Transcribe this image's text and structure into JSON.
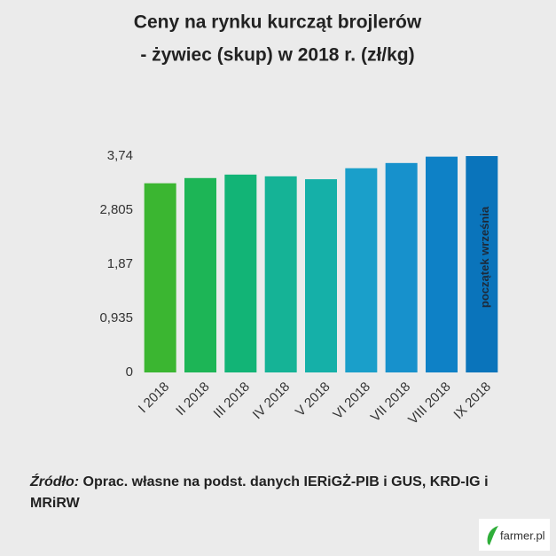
{
  "chart_data": {
    "type": "bar",
    "title": [
      "Ceny na rynku kurcząt brojlerów",
      "- żywiec (skup) w 2018 r. (zł/kg)"
    ],
    "categories": [
      "I 2018",
      "II 2018",
      "III 2018",
      "IV 2018",
      "V 2018",
      "VI 2018",
      "VII 2018",
      "VIII 2018",
      "IX 2018"
    ],
    "values": [
      3.27,
      3.36,
      3.42,
      3.39,
      3.34,
      3.53,
      3.62,
      3.73,
      3.74
    ],
    "colors": [
      "#3bb631",
      "#1db556",
      "#12b476",
      "#15b396",
      "#15b0a8",
      "#1a9fca",
      "#1791cc",
      "#0e81c6",
      "#0a74bb"
    ],
    "ylim": [
      0,
      3.74
    ],
    "yticks": [
      0,
      {
        "value": 0.935,
        "label": "0,935"
      },
      {
        "value": 1.87,
        "label": "1,87"
      },
      {
        "value": 2.805,
        "label": "2,805"
      },
      {
        "value": 3.74,
        "label": "3,74"
      }
    ],
    "grid": false,
    "annotation": "początek września"
  },
  "source": {
    "label": "Źródło:",
    "text": "Oprac. własne na podst. danych IERiGŻ-PIB i GUS, KRD-IG i MRiRW"
  },
  "logo": "farmer.pl"
}
